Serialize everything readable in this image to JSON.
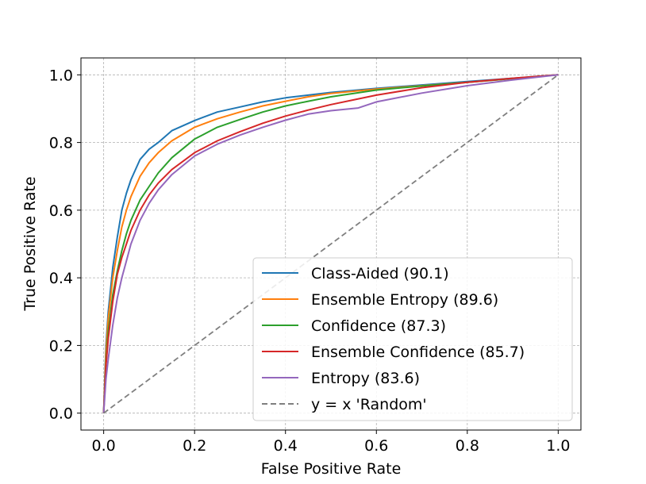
{
  "chart_data": {
    "type": "line",
    "title": "",
    "xlabel": "False Positive Rate",
    "ylabel": "True Positive Rate",
    "xlim": [
      -0.05,
      1.05
    ],
    "ylim": [
      -0.05,
      1.05
    ],
    "xticks": [
      0.0,
      0.2,
      0.4,
      0.6,
      0.8,
      1.0
    ],
    "yticks": [
      0.0,
      0.2,
      0.4,
      0.6,
      0.8,
      1.0
    ],
    "xtick_labels": [
      "0.0",
      "0.2",
      "0.4",
      "0.6",
      "0.8",
      "1.0"
    ],
    "ytick_labels": [
      "0.0",
      "0.2",
      "0.4",
      "0.6",
      "0.8",
      "1.0"
    ],
    "grid": true,
    "legend_position": "lower-right",
    "series": [
      {
        "name": "Class-Aided (90.1)",
        "color": "#1f77b4",
        "style": "solid",
        "x": [
          0,
          0.005,
          0.01,
          0.02,
          0.03,
          0.04,
          0.05,
          0.06,
          0.08,
          0.1,
          0.12,
          0.15,
          0.2,
          0.25,
          0.3,
          0.35,
          0.4,
          0.45,
          0.5,
          0.6,
          0.7,
          0.8,
          0.9,
          1.0
        ],
        "y": [
          0,
          0.2,
          0.3,
          0.43,
          0.52,
          0.6,
          0.65,
          0.69,
          0.75,
          0.78,
          0.8,
          0.835,
          0.865,
          0.89,
          0.905,
          0.92,
          0.932,
          0.94,
          0.948,
          0.96,
          0.97,
          0.98,
          0.99,
          1.0
        ]
      },
      {
        "name": "Ensemble Entropy (89.6)",
        "color": "#ff7f0e",
        "style": "solid",
        "x": [
          0,
          0.005,
          0.01,
          0.02,
          0.03,
          0.04,
          0.05,
          0.06,
          0.08,
          0.1,
          0.12,
          0.15,
          0.2,
          0.25,
          0.3,
          0.35,
          0.4,
          0.45,
          0.5,
          0.6,
          0.7,
          0.8,
          0.9,
          1.0
        ],
        "y": [
          0,
          0.18,
          0.28,
          0.4,
          0.48,
          0.55,
          0.6,
          0.64,
          0.7,
          0.74,
          0.77,
          0.805,
          0.845,
          0.87,
          0.89,
          0.908,
          0.922,
          0.935,
          0.945,
          0.958,
          0.968,
          0.978,
          0.989,
          1.0
        ]
      },
      {
        "name": "Confidence (87.3)",
        "color": "#2ca02c",
        "style": "solid",
        "x": [
          0,
          0.005,
          0.01,
          0.02,
          0.03,
          0.04,
          0.05,
          0.06,
          0.08,
          0.1,
          0.12,
          0.15,
          0.2,
          0.25,
          0.3,
          0.35,
          0.4,
          0.45,
          0.5,
          0.6,
          0.7,
          0.8,
          0.9,
          1.0
        ],
        "y": [
          0,
          0.15,
          0.24,
          0.35,
          0.42,
          0.48,
          0.53,
          0.57,
          0.63,
          0.67,
          0.71,
          0.755,
          0.81,
          0.845,
          0.868,
          0.89,
          0.908,
          0.922,
          0.935,
          0.955,
          0.967,
          0.978,
          0.989,
          1.0
        ]
      },
      {
        "name": "Ensemble Confidence (85.7)",
        "color": "#d62728",
        "style": "solid",
        "x": [
          0,
          0.005,
          0.01,
          0.02,
          0.03,
          0.04,
          0.05,
          0.06,
          0.08,
          0.1,
          0.12,
          0.15,
          0.2,
          0.25,
          0.3,
          0.35,
          0.4,
          0.45,
          0.5,
          0.6,
          0.7,
          0.8,
          0.9,
          1.0
        ],
        "y": [
          0,
          0.14,
          0.22,
          0.33,
          0.41,
          0.46,
          0.5,
          0.54,
          0.6,
          0.645,
          0.68,
          0.72,
          0.77,
          0.805,
          0.832,
          0.857,
          0.878,
          0.896,
          0.912,
          0.94,
          0.962,
          0.978,
          0.99,
          1.0
        ]
      },
      {
        "name": "Entropy (83.6)",
        "color": "#9467bd",
        "style": "solid",
        "x": [
          0,
          0.005,
          0.01,
          0.02,
          0.03,
          0.04,
          0.05,
          0.06,
          0.08,
          0.1,
          0.12,
          0.15,
          0.2,
          0.25,
          0.3,
          0.35,
          0.4,
          0.45,
          0.5,
          0.56,
          0.6,
          0.7,
          0.8,
          0.9,
          1.0
        ],
        "y": [
          0,
          0.1,
          0.16,
          0.26,
          0.34,
          0.4,
          0.45,
          0.5,
          0.57,
          0.62,
          0.66,
          0.705,
          0.76,
          0.795,
          0.822,
          0.845,
          0.866,
          0.884,
          0.894,
          0.902,
          0.92,
          0.946,
          0.968,
          0.985,
          1.0
        ]
      },
      {
        "name": "y = x 'Random'",
        "color": "#7f7f7f",
        "style": "dashed",
        "x": [
          0,
          1
        ],
        "y": [
          0,
          1
        ]
      }
    ]
  }
}
